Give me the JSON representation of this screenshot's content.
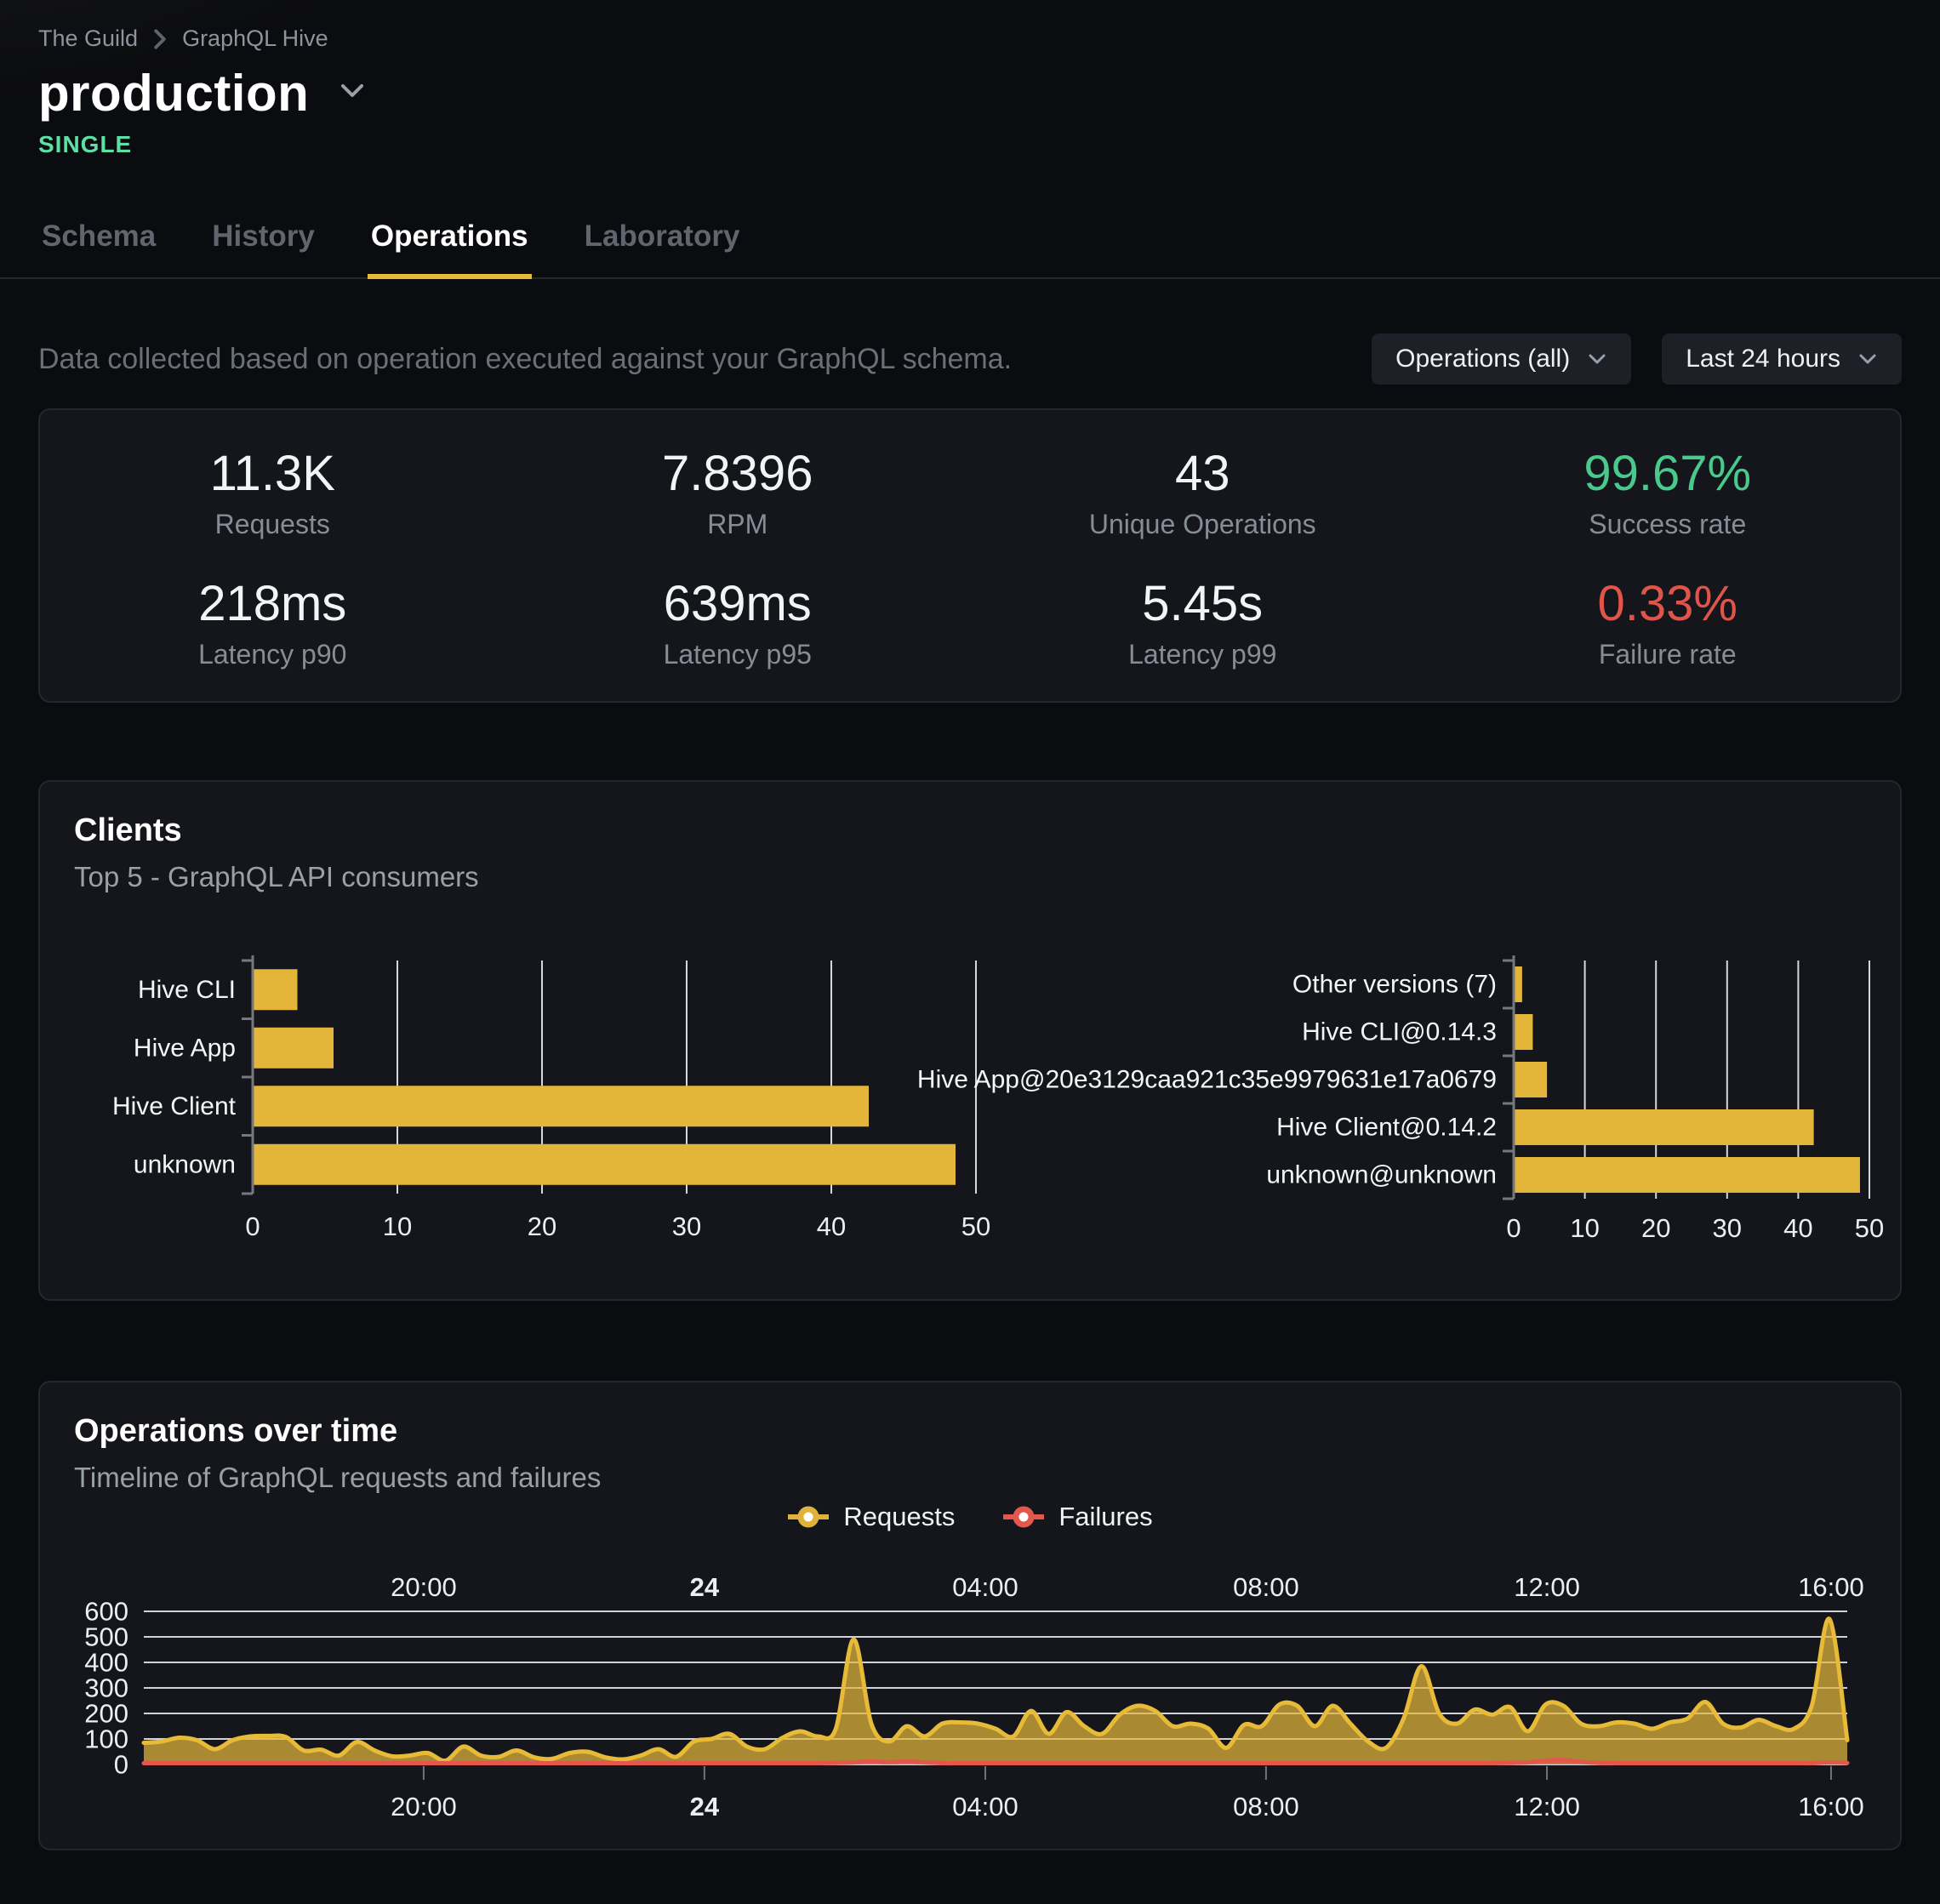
{
  "breadcrumb": {
    "org": "The Guild",
    "project": "GraphQL Hive"
  },
  "target": {
    "name": "production",
    "badge": "SINGLE"
  },
  "tabs": [
    {
      "label": "Schema",
      "active": false
    },
    {
      "label": "History",
      "active": false
    },
    {
      "label": "Operations",
      "active": true
    },
    {
      "label": "Laboratory",
      "active": false
    }
  ],
  "toolbar": {
    "description": "Data collected based on operation executed against your GraphQL schema.",
    "operations_filter": "Operations (all)",
    "period_filter": "Last 24 hours"
  },
  "stats": [
    {
      "value": "11.3K",
      "label": "Requests"
    },
    {
      "value": "7.8396",
      "label": "RPM"
    },
    {
      "value": "43",
      "label": "Unique Operations"
    },
    {
      "value": "99.67%",
      "label": "Success rate",
      "color": "#49c98c"
    },
    {
      "value": "218ms",
      "label": "Latency p90"
    },
    {
      "value": "639ms",
      "label": "Latency p95"
    },
    {
      "value": "5.45s",
      "label": "Latency p99"
    },
    {
      "value": "0.33%",
      "label": "Failure rate",
      "color": "#e15449"
    }
  ],
  "clients_card": {
    "title": "Clients",
    "subtitle": "Top 5 - GraphQL API consumers"
  },
  "timeline_card": {
    "title": "Operations over time",
    "subtitle": "Timeline of GraphQL requests and failures",
    "legend": [
      {
        "label": "Requests",
        "color": "#e0b23c"
      },
      {
        "label": "Failures",
        "color": "#e4574d"
      }
    ]
  },
  "colors": {
    "accent_yellow": "#e3b63a",
    "success_green": "#49c98c",
    "danger_red": "#e15449",
    "badge_green": "#5edfa5",
    "requests_line": "#e7bb38",
    "failures_line": "#e4574d"
  },
  "chart_data": [
    {
      "type": "bar",
      "orientation": "horizontal",
      "title": "Top 5 clients",
      "categories": [
        "Hive CLI",
        "Hive App",
        "Hive Client",
        "unknown"
      ],
      "values": [
        3,
        5.5,
        42.5,
        48.5
      ],
      "xlim": [
        0,
        50
      ],
      "xticks": [
        0,
        10,
        20,
        30,
        40,
        50
      ],
      "bar_color": "#e3b63a",
      "grid": true
    },
    {
      "type": "bar",
      "orientation": "horizontal",
      "title": "Top 5 client versions",
      "categories": [
        "Other versions (7)",
        "Hive CLI@0.14.3",
        "Hive App@20e3129caa921c35e9979631e17a0679",
        "Hive Client@0.14.2",
        "unknown@unknown"
      ],
      "values": [
        1,
        2.5,
        4.5,
        42,
        48.5
      ],
      "xlim": [
        0,
        50
      ],
      "xticks": [
        0,
        10,
        20,
        30,
        40,
        50
      ],
      "bar_color": "#e3b63a",
      "grid": true
    },
    {
      "type": "area",
      "title": "Operations over time",
      "ylim": [
        0,
        600
      ],
      "yticks": [
        0,
        100,
        200,
        300,
        400,
        500,
        600
      ],
      "xticks": [
        {
          "label": "20:00",
          "pos": 0.1643,
          "bold": false
        },
        {
          "label": "24",
          "pos": 0.3291,
          "bold": true
        },
        {
          "label": "04:00",
          "pos": 0.494,
          "bold": false
        },
        {
          "label": "08:00",
          "pos": 0.6588,
          "bold": false
        },
        {
          "label": "12:00",
          "pos": 0.8237,
          "bold": false
        },
        {
          "label": "16:00",
          "pos": 0.9905,
          "bold": false
        }
      ],
      "legend_position": "top-center",
      "grid": true,
      "series": [
        {
          "name": "Requests",
          "color": "#e7bb38",
          "fill": "rgba(227,182,58,0.72)",
          "values": [
            85,
            90,
            105,
            95,
            60,
            95,
            110,
            112,
            108,
            55,
            58,
            35,
            88,
            55,
            32,
            35,
            45,
            15,
            70,
            35,
            30,
            55,
            28,
            22,
            45,
            50,
            28,
            20,
            35,
            60,
            30,
            90,
            100,
            120,
            70,
            60,
            105,
            130,
            110,
            140,
            490,
            160,
            90,
            150,
            110,
            160,
            165,
            160,
            140,
            110,
            210,
            120,
            205,
            150,
            120,
            195,
            230,
            210,
            150,
            160,
            140,
            65,
            155,
            150,
            235,
            230,
            150,
            230,
            160,
            90,
            65,
            180,
            385,
            200,
            160,
            215,
            195,
            225,
            130,
            235,
            230,
            160,
            150,
            165,
            160,
            140,
            165,
            180,
            245,
            160,
            145,
            175,
            150,
            140,
            230,
            570,
            95
          ]
        },
        {
          "name": "Failures",
          "color": "#e4574d",
          "fill": "rgba(228,87,77,0.55)",
          "values": [
            5,
            5,
            5,
            5,
            5,
            5,
            5,
            5,
            5,
            5,
            5,
            5,
            5,
            5,
            5,
            5,
            5,
            5,
            5,
            5,
            5,
            5,
            5,
            5,
            5,
            5,
            5,
            5,
            5,
            5,
            5,
            5,
            5,
            5,
            5,
            5,
            5,
            5,
            5,
            6,
            8,
            12,
            9,
            12,
            8,
            5,
            5,
            5,
            5,
            5,
            5,
            5,
            5,
            5,
            5,
            5,
            5,
            5,
            5,
            5,
            5,
            5,
            5,
            5,
            5,
            5,
            5,
            5,
            5,
            5,
            5,
            5,
            5,
            5,
            5,
            5,
            5,
            6,
            8,
            15,
            18,
            10,
            6,
            5,
            5,
            5,
            5,
            5,
            5,
            5,
            5,
            5,
            5,
            5,
            5,
            8,
            6
          ]
        }
      ]
    }
  ]
}
